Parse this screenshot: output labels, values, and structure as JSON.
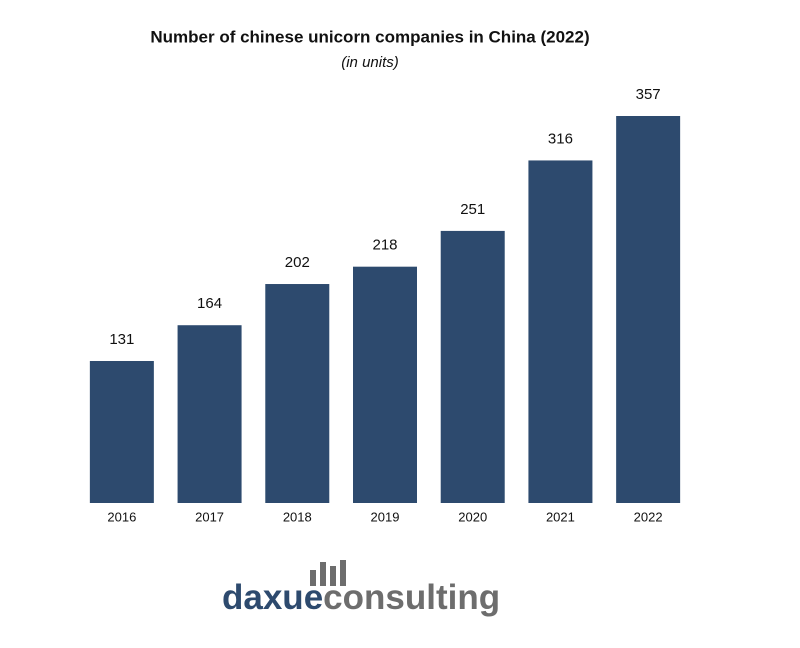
{
  "chart_data": {
    "type": "bar",
    "title": "Number of chinese unicorn companies in China (2022)",
    "subtitle": "(in units)",
    "categories": [
      "2016",
      "2017",
      "2018",
      "2019",
      "2020",
      "2021",
      "2022"
    ],
    "values": [
      131,
      164,
      202,
      218,
      251,
      316,
      357
    ],
    "color": "#2d4a6e"
  },
  "logo": {
    "part1": "daxue",
    "part2": "consulting"
  }
}
